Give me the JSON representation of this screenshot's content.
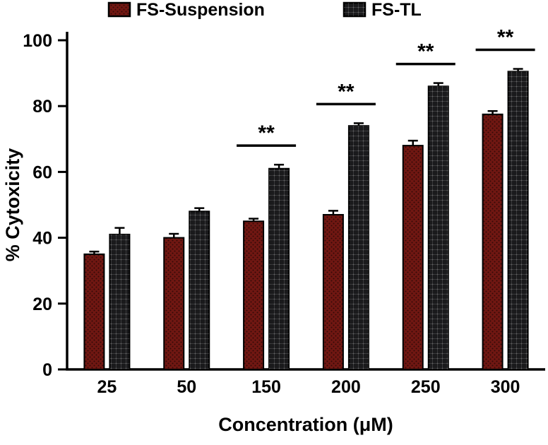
{
  "chart_data": {
    "type": "bar",
    "title": "",
    "xlabel": "Concentration (μM)",
    "ylabel": "% Cytoxicity",
    "categories": [
      "25",
      "50",
      "150",
      "200",
      "250",
      "300"
    ],
    "series": [
      {
        "name": "FS-Suspension",
        "color": "#701712",
        "pattern": "pattern-dots",
        "values": [
          35,
          40,
          45,
          47,
          68,
          77.5
        ],
        "errors": [
          0.8,
          1.2,
          0.8,
          1.2,
          1.5,
          1
        ]
      },
      {
        "name": "FS-TL",
        "color": "#1a1a1c",
        "pattern": "pattern-grid",
        "values": [
          41,
          48,
          61,
          74,
          86,
          90.5
        ],
        "errors": [
          2,
          1,
          1.2,
          0.8,
          1,
          0.8
        ]
      }
    ],
    "ylim": [
      0,
      100
    ],
    "yticks": [
      0,
      20,
      40,
      60,
      80,
      100
    ],
    "grid": false,
    "legend_position": "top",
    "significance": [
      {
        "category_index": 2,
        "label": "**"
      },
      {
        "category_index": 3,
        "label": "**"
      },
      {
        "category_index": 4,
        "label": "**"
      },
      {
        "category_index": 5,
        "label": "**"
      }
    ],
    "axis_color": "#000000",
    "background": "#FFFFFF"
  }
}
